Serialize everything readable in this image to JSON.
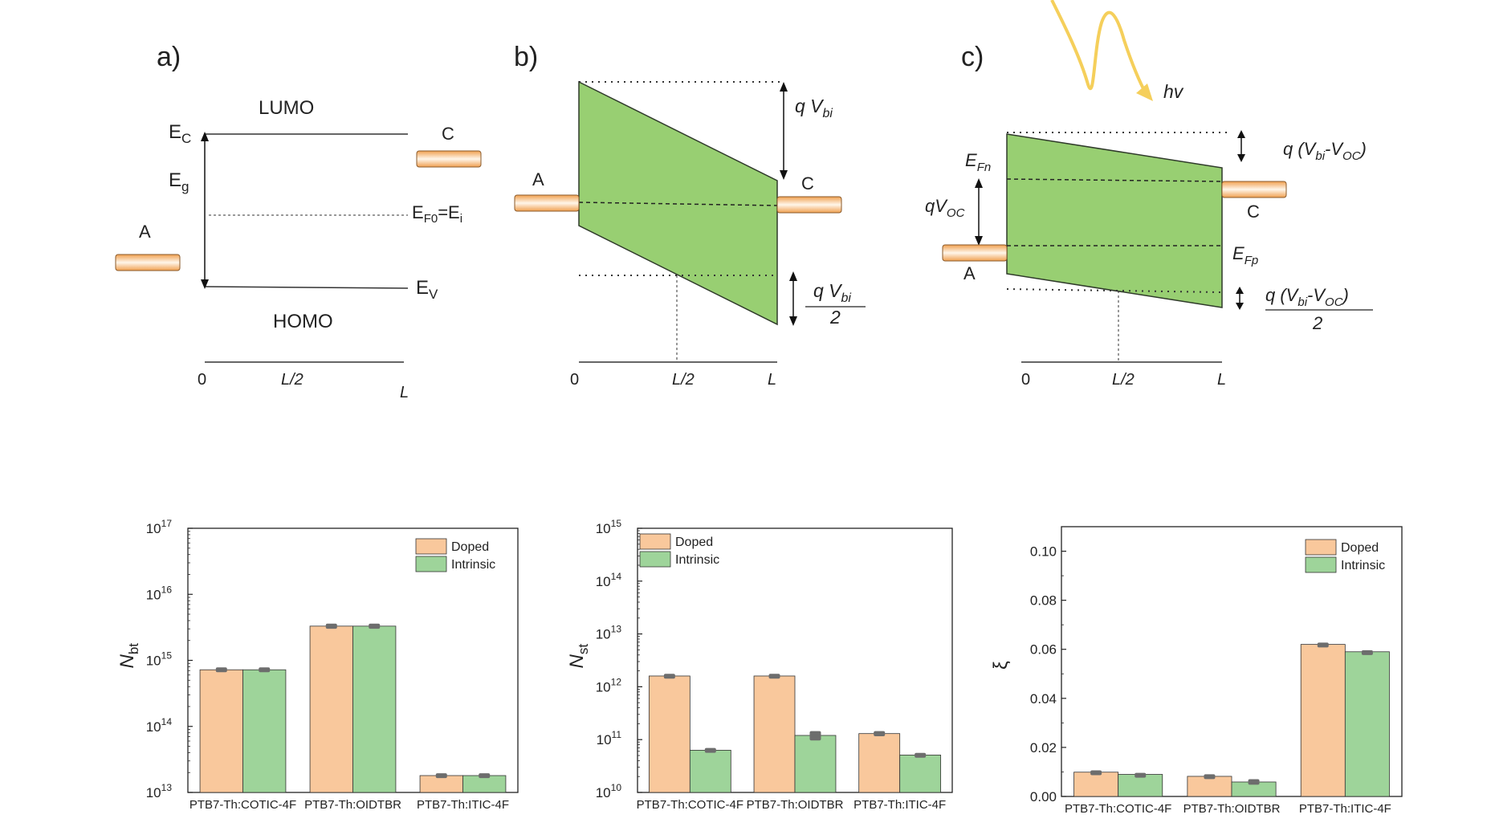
{
  "colors": {
    "doped": "#f9c89c",
    "intrinsic": "#9ed49a",
    "band_fill": "#98cf72",
    "electrode": "#f0a050",
    "photon": "#f5cf5b",
    "errorbar": "#6d6d6d"
  },
  "panel_a": {
    "label": "a)",
    "lumo": "LUMO",
    "homo": "HOMO",
    "ec": "E",
    "ec_sub": "C",
    "eg": "E",
    "eg_sub": "g",
    "ev": "E",
    "ev_sub": "V",
    "ef0": "E",
    "ef0_sub": "F0",
    "ef0_tail": "=E",
    "ef0_tail_sub": "i",
    "anode": "A",
    "cathode": "C",
    "x_ticks": [
      "0",
      "L/2",
      "L"
    ]
  },
  "panel_b": {
    "label": "b)",
    "qvbi": "q V",
    "qvbi_sub": "bi",
    "half_num": "q V",
    "half_num_sub": "bi",
    "half_den": "2",
    "anode": "A",
    "cathode": "C",
    "x_ticks": [
      "0",
      "L/2",
      "L"
    ]
  },
  "panel_c": {
    "label": "c)",
    "hv": "hv",
    "top_diff": "q (V",
    "top_diff_sub1": "bi",
    "top_diff_mid": "-V",
    "top_diff_sub2": "OC",
    "top_diff_end": ")",
    "efn": "E",
    "efn_sub": "Fn",
    "efp": "E",
    "efp_sub": "Fp",
    "qvoc": "qV",
    "qvoc_sub": "OC",
    "half_num": "q (V",
    "half_num_sub1": "bi",
    "half_num_mid": "-V",
    "half_num_sub2": "OC",
    "half_num_end": ")",
    "half_den": "2",
    "anode": "A",
    "cathode": "C",
    "x_ticks": [
      "0",
      "L/2",
      "L"
    ]
  },
  "chart_data": [
    {
      "type": "bar",
      "ylabel": "N",
      "ylabel_sub": "bt",
      "scale": "log",
      "ylim_exp": [
        13,
        17
      ],
      "y_ticks": [
        "10",
        "10",
        "10",
        "10",
        "10"
      ],
      "y_tick_exps": [
        "13",
        "14",
        "15",
        "16",
        "17"
      ],
      "categories": [
        "PTB7-Th:COTIC-4F",
        "PTB7-Th:OIDTBR",
        "PTB7-Th:ITIC-4F"
      ],
      "legend": {
        "position": "top-right"
      },
      "series": [
        {
          "name": "Doped",
          "values": [
            720000000000000.0,
            3300000000000000.0,
            18000000000000.0
          ],
          "errors": [
            40000000000000.0,
            200000000000000.0,
            1000000000000.0
          ]
        },
        {
          "name": "Intrinsic",
          "values": [
            720000000000000.0,
            3300000000000000.0,
            18000000000000.0
          ],
          "errors": [
            40000000000000.0,
            200000000000000.0,
            1000000000000.0
          ]
        }
      ]
    },
    {
      "type": "bar",
      "ylabel": "N",
      "ylabel_sub": "st",
      "scale": "log",
      "ylim_exp": [
        10,
        15
      ],
      "y_ticks": [
        "10",
        "10",
        "10",
        "10",
        "10",
        "10"
      ],
      "y_tick_exps": [
        "10",
        "11",
        "12",
        "13",
        "14",
        "15"
      ],
      "categories": [
        "PTB7-Th:COTIC-4F",
        "PTB7-Th:OIDTBR",
        "PTB7-Th:ITIC-4F"
      ],
      "legend": {
        "position": "top-left"
      },
      "series": [
        {
          "name": "Doped",
          "values": [
            1600000000000.0,
            1600000000000.0,
            130000000000.0
          ],
          "errors": [
            100000000000.0,
            100000000000.0,
            10000000000.0
          ]
        },
        {
          "name": "Intrinsic",
          "values": [
            63000000000.0,
            120000000000.0,
            51000000000.0
          ],
          "errors": [
            4000000000.0,
            20000000000.0,
            3000000000.0
          ]
        }
      ]
    },
    {
      "type": "bar",
      "ylabel": "ξ",
      "scale": "linear",
      "ylim": [
        0,
        0.11
      ],
      "y_ticks": [
        "0.00",
        "0.02",
        "0.04",
        "0.06",
        "0.08",
        "0.10"
      ],
      "y_tick_values": [
        0,
        0.02,
        0.04,
        0.06,
        0.08,
        0.1
      ],
      "categories": [
        "PTB7-Th:COTIC-4F",
        "PTB7-Th:OIDTBR",
        "PTB7-Th:ITIC-4F"
      ],
      "legend": {
        "position": "top-right"
      },
      "series": [
        {
          "name": "Doped",
          "values": [
            0.0099,
            0.0082,
            0.062
          ],
          "errors": [
            0.0004,
            0.0005,
            0.0004
          ]
        },
        {
          "name": "Intrinsic",
          "values": [
            0.009,
            0.0059,
            0.059
          ],
          "errors": [
            0.0003,
            0.0008,
            0.0003
          ]
        }
      ]
    }
  ]
}
